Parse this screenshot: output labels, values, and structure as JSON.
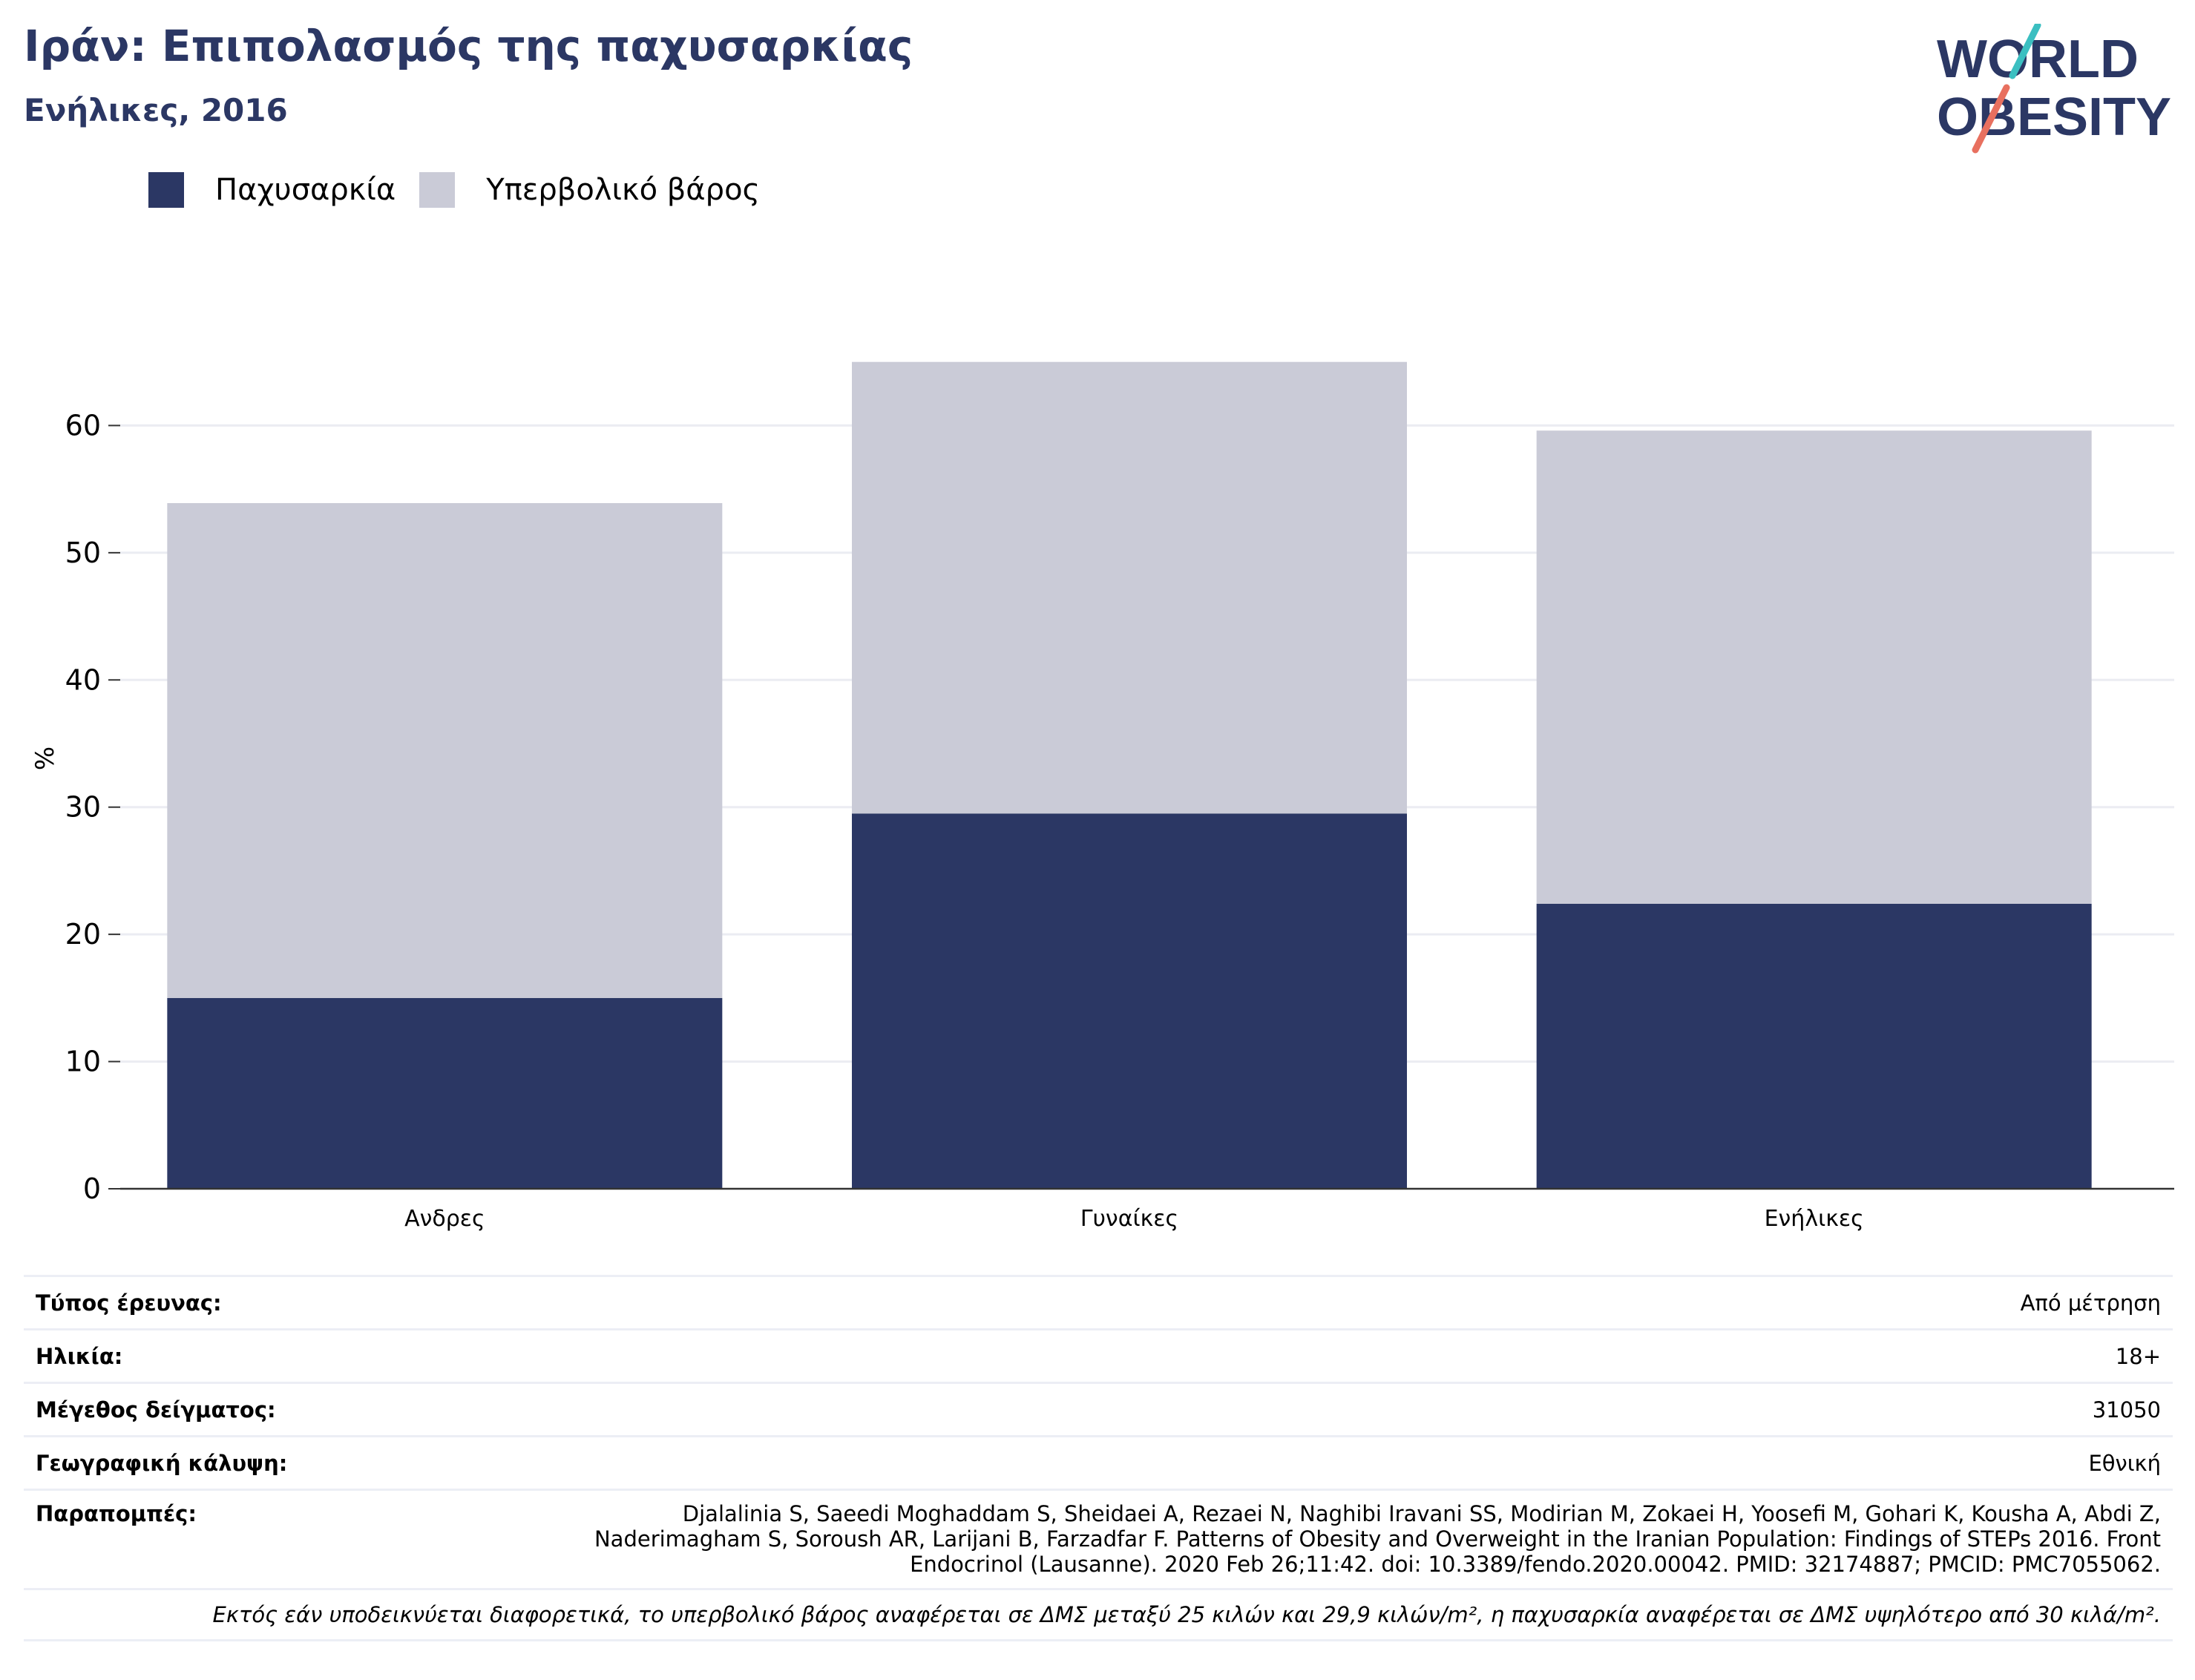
{
  "header": {
    "title": "Ιράν: Επιπολασμός της παχυσαρκίας",
    "subtitle": "Ενήλικες, 2016"
  },
  "logo": {
    "line1": "WORLD",
    "line2": "OBESITY",
    "colors": {
      "text": "#2b3764",
      "slash_top": "#3bbfc1",
      "slash_bottom": "#e8705f"
    }
  },
  "legend": [
    {
      "label": "Παχυσαρκία",
      "color": "#2b3764"
    },
    {
      "label": "Υπερβολικό βάρος",
      "color": "#cacbd7"
    }
  ],
  "chart_data": {
    "type": "bar",
    "stacked": true,
    "categories": [
      "Ανδρες",
      "Γυναίκες",
      "Ενήλικες"
    ],
    "series": [
      {
        "name": "Παχυσαρκία",
        "values": [
          15.0,
          29.5,
          22.4
        ],
        "color": "#2b3764"
      },
      {
        "name": "Υπερβολικό βάρος",
        "values": [
          38.9,
          35.5,
          37.2
        ],
        "color": "#cacbd7"
      }
    ],
    "ylabel": "%",
    "ylim": [
      0,
      70
    ],
    "yticks": [
      0,
      10,
      20,
      30,
      40,
      50,
      60
    ],
    "grid": true,
    "legend_position": "top-left"
  },
  "meta": {
    "survey_type_label": "Τύπος έρευνας:",
    "survey_type_value": "Από μέτρηση",
    "age_label": "Ηλικία:",
    "age_value": "18+",
    "sample_size_label": "Μέγεθος δείγματος:",
    "sample_size_value": "31050",
    "coverage_label": "Γεωγραφική κάλυψη:",
    "coverage_value": "Εθνική",
    "references_label": "Παραπομπές:",
    "references_value": "Djalalinia S, Saeedi Moghaddam S, Sheidaei A, Rezaei N, Naghibi Iravani SS, Modirian M, Zokaei H, Yoosefi M, Gohari K, Kousha A, Abdi Z, Naderimagham S, Soroush AR, Larijani B, Farzadfar F. Patterns of Obesity and Overweight in the Iranian Population: Findings of STEPs 2016. Front Endocrinol (Lausanne). 2020 Feb 26;11:42. doi: 10.3389/fendo.2020.00042. PMID: 32174887; PMCID: PMC7055062.",
    "footnote": "Εκτός εάν υποδεικνύεται διαφορετικά, το υπερβολικό βάρος αναφέρεται σε ΔΜΣ μεταξύ 25 κιλών και 29,9 κιλών/m², η παχυσαρκία αναφέρεται σε ΔΜΣ υψηλότερο από 30 κιλά/m²."
  }
}
